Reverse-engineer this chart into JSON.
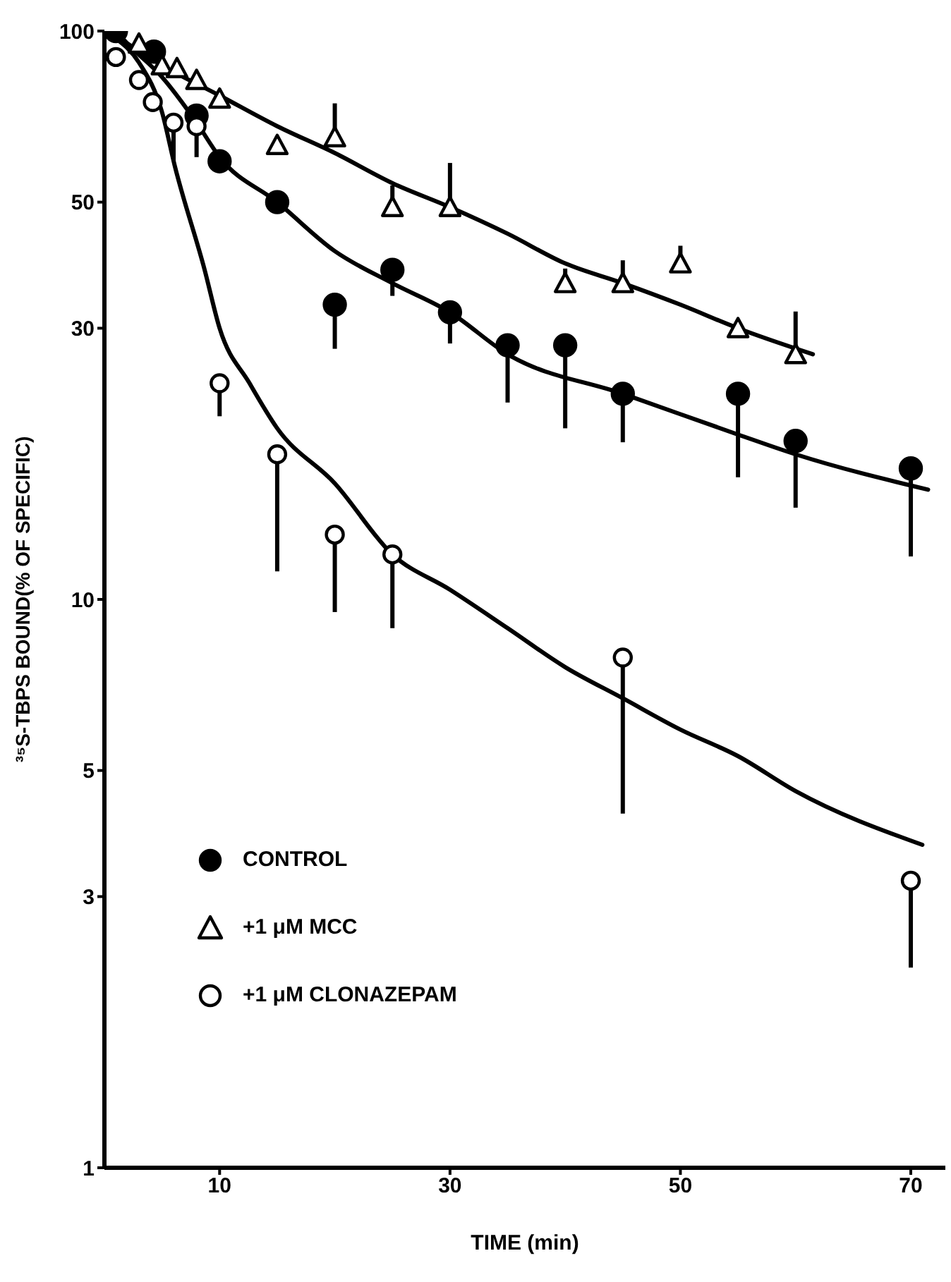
{
  "chart_data": {
    "type": "scatter",
    "xlabel": "TIME (min)",
    "ylabel": "³⁵S-TBPS BOUND(% OF SPECIFIC)",
    "log": "y",
    "xlim": [
      0,
      73
    ],
    "xticks": [
      10,
      30,
      50,
      70
    ],
    "ylim": [
      1,
      100
    ],
    "yticks": [
      1,
      3,
      5,
      10,
      30,
      50,
      100
    ],
    "legend": "left",
    "series": [
      {
        "name": "CONTROL",
        "marker": "circle",
        "color": "#000000",
        "x": [
          1,
          4.3,
          8,
          10,
          15,
          20,
          25,
          30,
          35,
          40,
          45,
          55,
          60,
          70
        ],
        "values": [
          100,
          92,
          71,
          59,
          50,
          33,
          38,
          32,
          28,
          28,
          23,
          23,
          19,
          17
        ],
        "errors": [
          null,
          null,
          [
            60,
            71
          ],
          null,
          null,
          [
            27.6,
            33
          ],
          [
            34.2,
            38
          ],
          [
            28.2,
            32
          ],
          [
            22.2,
            28
          ],
          [
            20,
            28
          ],
          [
            18.9,
            23
          ],
          [
            16.4,
            23
          ],
          [
            14.5,
            19
          ],
          [
            11.9,
            17
          ]
        ]
      },
      {
        "name": "+1 μM MCC",
        "marker": "triangle",
        "color": "#000000",
        "x": [
          3,
          5,
          6.3,
          8,
          10,
          15,
          20,
          25,
          30,
          40,
          45,
          50,
          55,
          60
        ],
        "values": [
          95,
          87,
          86,
          82,
          76,
          63,
          65,
          49,
          49,
          36,
          36,
          39,
          30,
          27
        ],
        "errors": [
          null,
          null,
          null,
          null,
          null,
          null,
          [
            65,
            74.6
          ],
          [
            49,
            53.5
          ],
          [
            49,
            58.6
          ],
          [
            36,
            38.2
          ],
          [
            36,
            39.5
          ],
          [
            39,
            41.9
          ],
          null,
          [
            27,
            32.1
          ]
        ]
      },
      {
        "name": "+1 μM CLONAZEPAM",
        "marker": "circle",
        "color": "#000000",
        "x": [
          1,
          3,
          4.2,
          6,
          8,
          10,
          15,
          20,
          25,
          45,
          70
        ],
        "values": [
          90,
          82,
          75,
          69,
          68,
          24,
          18,
          13,
          12,
          7.9,
          3.2
        ],
        "errors": [
          null,
          null,
          null,
          [
            59,
            69
          ],
          null,
          [
            21,
            24
          ],
          [
            11.2,
            18
          ],
          [
            9.5,
            13
          ],
          [
            8.9,
            12
          ],
          [
            4.2,
            7.9
          ],
          [
            2.25,
            3.2
          ]
        ]
      },
      {
        "type": "line",
        "marker": "none",
        "line_style": "solid",
        "color": "#000000",
        "x": [
          1,
          2,
          5,
          8,
          10,
          15,
          20,
          25,
          30,
          35,
          45,
          55,
          60,
          71.5
        ],
        "values": [
          100,
          95,
          83,
          69,
          60,
          50,
          41,
          36,
          32,
          27,
          23,
          19.5,
          18,
          15.6
        ]
      },
      {
        "type": "line",
        "marker": "none",
        "line_style": "solid",
        "color": "#000000",
        "x": [
          1,
          5,
          10,
          15,
          20,
          25,
          30,
          35,
          40,
          45,
          50,
          55,
          61.5
        ],
        "values": [
          98,
          87,
          77,
          68,
          61,
          54,
          49,
          44,
          39,
          36,
          33,
          30,
          27
        ]
      },
      {
        "type": "line",
        "marker": "none",
        "line_style": "solid",
        "color": "#000000",
        "x": [
          1,
          3,
          5,
          6.1,
          8.7,
          10,
          12.6,
          15,
          20,
          25,
          30,
          35,
          40,
          45,
          50,
          55,
          60,
          71
        ],
        "values": [
          97,
          88,
          72,
          58,
          38,
          30,
          24,
          20,
          16,
          12,
          10.4,
          8.9,
          7.6,
          6.7,
          5.9,
          5.3,
          4.6,
          3.7
        ]
      }
    ]
  }
}
